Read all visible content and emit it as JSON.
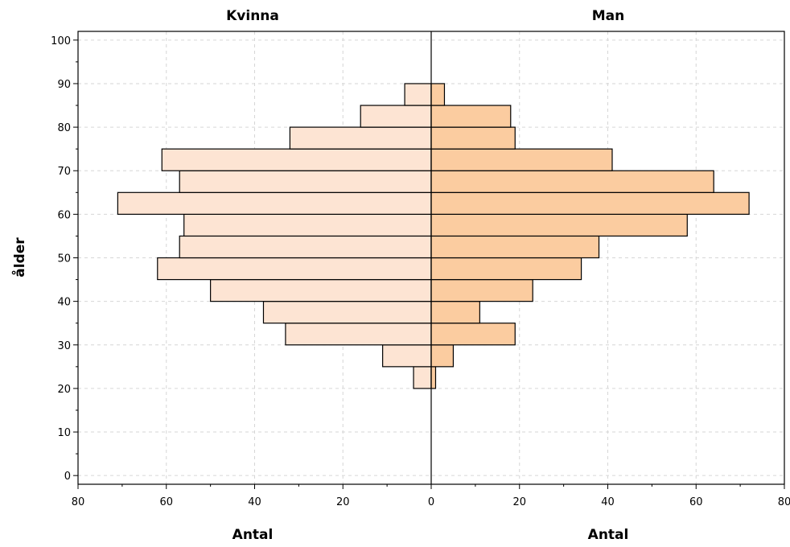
{
  "chart_data": {
    "type": "bar",
    "orientation": "horizontal",
    "subtype": "population-pyramid",
    "panels": [
      {
        "title": "Kvinna",
        "xlabel": "Antal",
        "direction": "reversed"
      },
      {
        "title": "Man",
        "xlabel": "Antal",
        "direction": "normal"
      }
    ],
    "ylabel": "ålder",
    "y_ticks": [
      0,
      10,
      20,
      30,
      40,
      50,
      60,
      70,
      80,
      90,
      100
    ],
    "ylim": [
      -2,
      102
    ],
    "x_ticks": [
      80,
      60,
      40,
      20,
      0,
      20,
      40,
      60,
      80
    ],
    "xlim": [
      0,
      80
    ],
    "bin_width": 5,
    "bins": [
      20,
      25,
      30,
      35,
      40,
      45,
      50,
      55,
      60,
      65,
      70,
      75,
      80,
      85
    ],
    "series": [
      {
        "name": "Kvinna",
        "values": [
          4,
          11,
          33,
          38,
          50,
          62,
          57,
          56,
          71,
          57,
          61,
          32,
          16,
          6
        ],
        "color": "#fde4d3"
      },
      {
        "name": "Man",
        "values": [
          1,
          5,
          19,
          11,
          23,
          34,
          38,
          58,
          72,
          64,
          41,
          19,
          18,
          3
        ],
        "color": "#fbcca0"
      }
    ],
    "grid": true
  }
}
